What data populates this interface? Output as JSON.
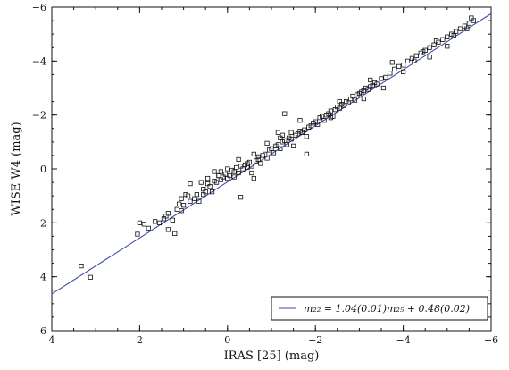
{
  "chart_data": {
    "type": "scatter",
    "title": "",
    "xlabel": "IRAS [25] (mag)",
    "ylabel": "WISE W4 (mag)",
    "xlim": [
      4,
      -6
    ],
    "ylim": [
      6,
      -6
    ],
    "xticks": [
      4,
      2,
      0,
      -2,
      -4,
      -6
    ],
    "yticks": [
      -6,
      -4,
      -2,
      0,
      2,
      4,
      6
    ],
    "xtick_labels": [
      "4",
      "2",
      "0",
      "−2",
      "−4",
      "−6"
    ],
    "ytick_labels": [
      "−6",
      "−4",
      "−2",
      "0",
      "2",
      "4",
      "6"
    ],
    "grid": false,
    "legend_position": "lower-right",
    "legend_text": "m₂₂ = 1.04(0.01)m₂₅ + 0.48(0.02)",
    "fit": {
      "slope": 1.04,
      "intercept": 0.48
    },
    "series": [
      {
        "values": [
          [
            3.33,
            3.6
          ],
          [
            3.12,
            4.02
          ],
          [
            2.05,
            2.42
          ],
          [
            2.0,
            2.0
          ],
          [
            1.9,
            2.05
          ],
          [
            1.8,
            2.2
          ],
          [
            1.65,
            1.95
          ],
          [
            1.55,
            2.0
          ],
          [
            1.45,
            1.85
          ],
          [
            1.4,
            1.75
          ],
          [
            1.35,
            2.25
          ],
          [
            1.25,
            1.9
          ],
          [
            1.2,
            2.4
          ],
          [
            1.15,
            1.5
          ],
          [
            1.1,
            1.3
          ],
          [
            1.05,
            1.55
          ],
          [
            1.0,
            1.35
          ],
          [
            0.95,
            0.95
          ],
          [
            0.9,
            1.0
          ],
          [
            0.85,
            1.2
          ],
          [
            0.75,
            1.1
          ],
          [
            0.7,
            0.95
          ],
          [
            0.65,
            1.2
          ],
          [
            0.55,
            0.75
          ],
          [
            0.5,
            0.85
          ],
          [
            0.45,
            0.55
          ],
          [
            0.4,
            0.65
          ],
          [
            0.35,
            0.85
          ],
          [
            0.3,
            0.45
          ],
          [
            0.25,
            0.5
          ],
          [
            0.2,
            0.25
          ],
          [
            0.15,
            0.4
          ],
          [
            0.1,
            0.3
          ],
          [
            0.05,
            0.2
          ],
          [
            0.0,
            0.35
          ],
          [
            -0.05,
            0.25
          ],
          [
            -0.1,
            0.05
          ],
          [
            -0.15,
            0.3
          ],
          [
            -0.2,
            -0.05
          ],
          [
            -0.25,
            0.15
          ],
          [
            -0.3,
            1.05
          ],
          [
            -0.35,
            0.0
          ],
          [
            -0.4,
            -0.15
          ],
          [
            -0.45,
            -0.05
          ],
          [
            -0.5,
            -0.25
          ],
          [
            -0.55,
            -0.1
          ],
          [
            -0.6,
            0.35
          ],
          [
            -0.65,
            -0.3
          ],
          [
            -0.7,
            -0.35
          ],
          [
            -0.75,
            -0.2
          ],
          [
            -0.8,
            -0.5
          ],
          [
            -0.85,
            -0.55
          ],
          [
            -0.9,
            -0.4
          ],
          [
            -0.95,
            -0.7
          ],
          [
            -1.0,
            -0.75
          ],
          [
            -1.05,
            -0.6
          ],
          [
            -1.1,
            -0.85
          ],
          [
            -1.15,
            -0.9
          ],
          [
            -1.2,
            -0.75
          ],
          [
            -1.25,
            -1.0
          ],
          [
            -1.3,
            -1.05
          ],
          [
            -1.35,
            -0.9
          ],
          [
            -1.4,
            -1.15
          ],
          [
            -1.45,
            -1.1
          ],
          [
            -1.5,
            -0.85
          ],
          [
            -1.55,
            -1.25
          ],
          [
            -1.6,
            -1.3
          ],
          [
            -1.65,
            -1.4
          ],
          [
            -1.7,
            -1.35
          ],
          [
            -1.75,
            -1.45
          ],
          [
            -1.8,
            -1.2
          ],
          [
            -1.85,
            -1.55
          ],
          [
            -1.9,
            -1.6
          ],
          [
            -1.95,
            -1.7
          ],
          [
            -2.0,
            -1.75
          ],
          [
            -2.05,
            -1.65
          ],
          [
            -2.1,
            -1.9
          ],
          [
            -2.15,
            -1.95
          ],
          [
            -2.2,
            -1.8
          ],
          [
            -2.25,
            -2.0
          ],
          [
            -2.3,
            -2.05
          ],
          [
            -2.35,
            -2.15
          ],
          [
            -2.4,
            -1.95
          ],
          [
            -2.45,
            -2.2
          ],
          [
            -2.5,
            -2.3
          ],
          [
            -2.55,
            -2.25
          ],
          [
            -2.6,
            -2.4
          ],
          [
            -2.65,
            -2.35
          ],
          [
            -2.7,
            -2.5
          ],
          [
            -2.75,
            -2.45
          ],
          [
            -2.8,
            -2.6
          ],
          [
            -2.85,
            -2.7
          ],
          [
            -2.9,
            -2.55
          ],
          [
            -2.95,
            -2.75
          ],
          [
            -3.0,
            -2.8
          ],
          [
            -3.05,
            -2.85
          ],
          [
            -3.1,
            -2.9
          ],
          [
            -3.15,
            -3.0
          ],
          [
            -3.2,
            -2.95
          ],
          [
            -3.25,
            -3.05
          ],
          [
            -3.3,
            -3.1
          ],
          [
            -3.35,
            -3.2
          ],
          [
            -3.4,
            -3.15
          ],
          [
            -3.5,
            -3.35
          ],
          [
            -3.6,
            -3.4
          ],
          [
            -3.7,
            -3.55
          ],
          [
            -3.8,
            -3.7
          ],
          [
            -3.9,
            -3.8
          ],
          [
            -4.0,
            -3.85
          ],
          [
            -4.1,
            -4.0
          ],
          [
            -4.2,
            -4.1
          ],
          [
            -4.3,
            -4.2
          ],
          [
            -4.4,
            -4.3
          ],
          [
            -4.5,
            -4.4
          ],
          [
            -4.6,
            -4.5
          ],
          [
            -4.7,
            -4.6
          ],
          [
            -4.8,
            -4.7
          ],
          [
            -4.9,
            -4.8
          ],
          [
            -5.0,
            -4.9
          ],
          [
            -5.1,
            -5.0
          ],
          [
            -5.2,
            -5.1
          ],
          [
            -5.3,
            -5.2
          ],
          [
            -5.4,
            -5.3
          ],
          [
            -5.5,
            -5.4
          ],
          [
            -5.6,
            -5.5
          ],
          [
            -1.3,
            -2.05
          ],
          [
            -1.65,
            -1.8
          ],
          [
            -1.8,
            -0.55
          ],
          [
            -0.7,
            -0.45
          ],
          [
            -0.45,
            -0.2
          ],
          [
            -0.3,
            -0.1
          ],
          [
            0.2,
            0.25
          ],
          [
            0.45,
            0.35
          ],
          [
            -0.15,
            0.1
          ],
          [
            -0.55,
            0.15
          ],
          [
            -1.15,
            -1.35
          ],
          [
            -1.25,
            -1.25
          ],
          [
            -2.35,
            -1.9
          ],
          [
            -2.55,
            -2.5
          ],
          [
            -3.1,
            -2.6
          ],
          [
            -3.25,
            -3.3
          ],
          [
            -3.55,
            -3.0
          ],
          [
            -3.75,
            -3.95
          ],
          [
            -4.0,
            -3.6
          ],
          [
            -4.25,
            -4.0
          ],
          [
            -4.45,
            -4.35
          ],
          [
            -4.6,
            -4.15
          ],
          [
            -4.75,
            -4.75
          ],
          [
            -5.0,
            -4.55
          ],
          [
            -5.15,
            -4.95
          ],
          [
            -5.45,
            -5.2
          ],
          [
            -5.55,
            -5.6
          ],
          [
            0.55,
            0.95
          ],
          [
            0.85,
            0.55
          ],
          [
            1.05,
            1.1
          ],
          [
            1.35,
            1.65
          ],
          [
            0.6,
            0.5
          ],
          [
            0.3,
            0.1
          ],
          [
            0.15,
            0.1
          ],
          [
            0.0,
            0.0
          ],
          [
            -0.25,
            -0.35
          ],
          [
            -0.6,
            -0.55
          ],
          [
            -0.9,
            -0.95
          ],
          [
            -1.2,
            -1.15
          ],
          [
            -1.45,
            -1.35
          ]
        ]
      }
    ]
  }
}
